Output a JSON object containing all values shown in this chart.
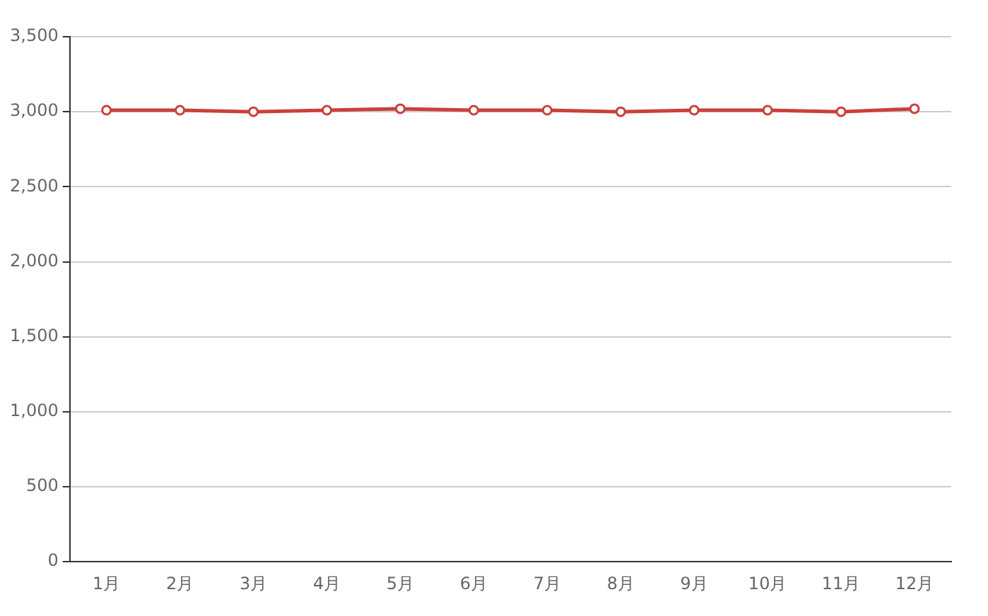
{
  "chart_data": {
    "type": "line",
    "categories": [
      "1月",
      "2月",
      "3月",
      "4月",
      "5月",
      "6月",
      "7月",
      "8月",
      "9月",
      "10月",
      "11月",
      "12月"
    ],
    "series": [
      {
        "color": "#c9403c",
        "values": [
          3010,
          3010,
          3000,
          3010,
          3020,
          3010,
          3010,
          3000,
          3010,
          3010,
          3000,
          3020
        ]
      }
    ],
    "ylim": [
      0,
      3500
    ],
    "yticks": [
      0,
      500,
      {
        "value": 1000,
        "label": "1,000"
      },
      {
        "value": 1500,
        "label": "1,500"
      },
      {
        "value": 2000,
        "label": "2,000"
      },
      {
        "value": 2500,
        "label": "2,500"
      },
      {
        "value": 3000,
        "label": "3,000"
      },
      {
        "value": 3500,
        "label": "3,500"
      }
    ],
    "grid": "y",
    "legend": false,
    "marker": "circle",
    "line_style": "solid"
  }
}
